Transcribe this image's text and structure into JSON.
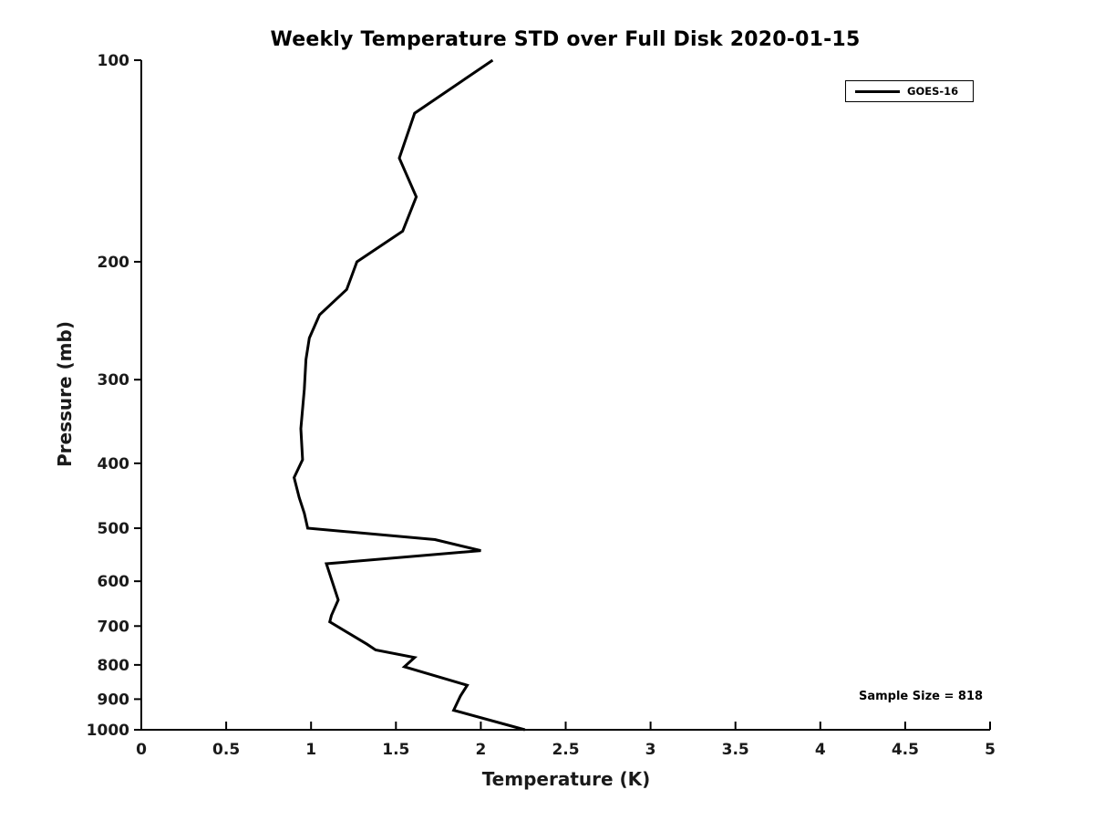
{
  "chart_data": {
    "type": "line",
    "title": "Weekly Temperature STD over Full Disk 2020-01-15",
    "xlabel": "Temperature (K)",
    "ylabel": "Pressure (mb)",
    "xlim": [
      0,
      5
    ],
    "ylim": [
      100,
      1000
    ],
    "x_scale": "linear",
    "y_scale": "log",
    "y_direction": "reversed",
    "grid": false,
    "box": false,
    "x_ticks": [
      "0",
      "0.5",
      "1",
      "1.5",
      "2",
      "2.5",
      "3",
      "3.5",
      "4",
      "4.5",
      "5"
    ],
    "x_tick_values": [
      0,
      0.5,
      1,
      1.5,
      2,
      2.5,
      3,
      3.5,
      4,
      4.5,
      5
    ],
    "y_ticks": [
      "100",
      "200",
      "300",
      "400",
      "500",
      "600",
      "700",
      "800",
      "900",
      "1000"
    ],
    "y_tick_values": [
      100,
      200,
      300,
      400,
      500,
      600,
      700,
      800,
      900,
      1000
    ],
    "legend": {
      "position": "top-right",
      "entries": [
        {
          "label": "GOES-16",
          "color": "#000000",
          "line_width": 3
        }
      ]
    },
    "annotation": "Sample Size = 818",
    "series": [
      {
        "name": "GOES-16",
        "color": "#000000",
        "line_width": 3,
        "points_temperature_pressure": [
          [
            2.07,
            100
          ],
          [
            1.61,
            120
          ],
          [
            1.52,
            140
          ],
          [
            1.62,
            160
          ],
          [
            1.54,
            180
          ],
          [
            1.27,
            200
          ],
          [
            1.21,
            220
          ],
          [
            1.05,
            240
          ],
          [
            0.99,
            260
          ],
          [
            0.97,
            280
          ],
          [
            0.96,
            310
          ],
          [
            0.94,
            355
          ],
          [
            0.95,
            395
          ],
          [
            0.9,
            420
          ],
          [
            0.93,
            450
          ],
          [
            0.96,
            475
          ],
          [
            0.98,
            500
          ],
          [
            1.73,
            520
          ],
          [
            2.0,
            540
          ],
          [
            1.09,
            565
          ],
          [
            1.16,
            640
          ],
          [
            1.12,
            675
          ],
          [
            1.11,
            690
          ],
          [
            1.33,
            745
          ],
          [
            1.38,
            760
          ],
          [
            1.61,
            780
          ],
          [
            1.55,
            805
          ],
          [
            1.92,
            858
          ],
          [
            1.88,
            890
          ],
          [
            1.84,
            935
          ],
          [
            2.26,
            1000
          ]
        ]
      }
    ]
  },
  "colors": {
    "background": "#ffffff",
    "axis": "#000000",
    "tick_text": "#1a1a1a",
    "line": "#000000"
  }
}
